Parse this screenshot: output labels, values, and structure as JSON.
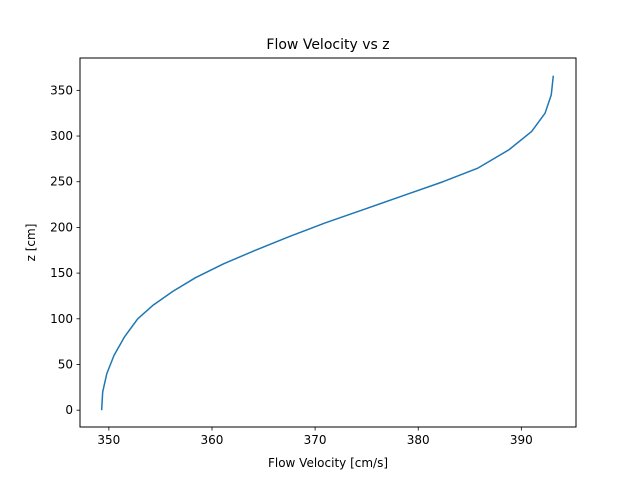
{
  "chart_data": {
    "type": "line",
    "title": "Flow Velocity vs z",
    "xlabel": "Flow Velocity [cm/s]",
    "ylabel": "z [cm]",
    "xlim": [
      347.2,
      395.3
    ],
    "ylim": [
      -18.4,
      385.4
    ],
    "xticks": [
      350,
      360,
      370,
      380,
      390
    ],
    "yticks": [
      0,
      50,
      100,
      150,
      200,
      250,
      300,
      350
    ],
    "grid": false,
    "series": [
      {
        "color": "#1f77b4",
        "x": [
          349.3,
          349.4,
          349.8,
          350.5,
          351.5,
          352.8,
          354.3,
          356.2,
          358.4,
          361.1,
          364.2,
          367.5,
          371.0,
          374.8,
          378.6,
          382.4,
          385.8,
          388.8,
          391.0,
          392.3,
          392.9,
          393.1
        ],
        "y": [
          0,
          20,
          40,
          60,
          80,
          100,
          115,
          130,
          145,
          160,
          175,
          190,
          205,
          220,
          235,
          250,
          265,
          285,
          305,
          325,
          345,
          366
        ]
      }
    ]
  }
}
